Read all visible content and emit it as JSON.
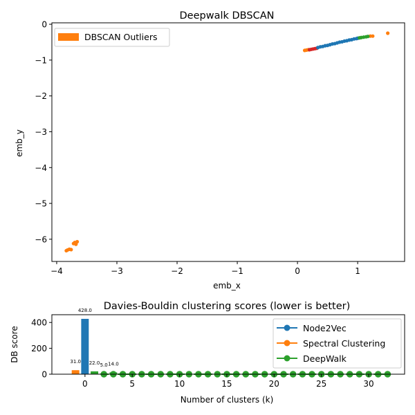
{
  "chart_data": [
    {
      "type": "scatter",
      "title": "Deepwalk DBSCAN",
      "xlabel": "emb_x",
      "ylabel": "emb_y",
      "xlim": [
        -4.08,
        1.78
      ],
      "ylim": [
        -6.62,
        0.04
      ],
      "xticks": [
        -4,
        -3,
        -2,
        -1,
        0,
        1
      ],
      "yticks": [
        0,
        -1,
        -2,
        -3,
        -4,
        -5,
        -6
      ],
      "grid": false,
      "legend": {
        "placement": "top-left",
        "entries": [
          {
            "label": "DBSCAN Outliers",
            "color": "#ff7f0e"
          }
        ]
      },
      "series": [
        {
          "name": "DBSCAN Outliers",
          "color": "#ff7f0e",
          "points": [
            [
              -3.82,
              -6.3
            ],
            [
              -3.79,
              -6.28
            ],
            [
              -3.76,
              -6.29
            ],
            [
              -3.84,
              -6.32
            ],
            [
              -3.72,
              -6.12
            ],
            [
              -3.69,
              -6.1
            ],
            [
              -3.66,
              -6.07
            ],
            [
              -3.68,
              -6.14
            ],
            [
              -3.7,
              -6.09
            ],
            [
              0.12,
              -0.73
            ],
            [
              0.15,
              -0.72
            ],
            [
              0.18,
              -0.71
            ],
            [
              1.21,
              -0.33
            ],
            [
              1.25,
              -0.33
            ],
            [
              1.5,
              -0.25
            ]
          ]
        },
        {
          "color": "#d62728",
          "points": [
            [
              0.2,
              -0.71
            ],
            [
              0.23,
              -0.7
            ],
            [
              0.26,
              -0.69
            ],
            [
              0.29,
              -0.68
            ],
            [
              0.32,
              -0.67
            ]
          ]
        },
        {
          "color": "#1f77b4",
          "points": [
            [
              0.34,
              -0.65
            ],
            [
              0.38,
              -0.63
            ],
            [
              0.42,
              -0.62
            ],
            [
              0.46,
              -0.6
            ],
            [
              0.5,
              -0.59
            ],
            [
              0.54,
              -0.57
            ],
            [
              0.58,
              -0.55
            ],
            [
              0.62,
              -0.54
            ],
            [
              0.66,
              -0.52
            ],
            [
              0.7,
              -0.5
            ],
            [
              0.74,
              -0.49
            ],
            [
              0.78,
              -0.47
            ],
            [
              0.82,
              -0.46
            ],
            [
              0.86,
              -0.44
            ],
            [
              0.9,
              -0.43
            ],
            [
              0.94,
              -0.41
            ],
            [
              0.98,
              -0.4
            ],
            [
              1.0,
              -0.39
            ]
          ]
        },
        {
          "color": "#2ca02c",
          "points": [
            [
              1.03,
              -0.38
            ],
            [
              1.06,
              -0.37
            ],
            [
              1.1,
              -0.36
            ],
            [
              1.14,
              -0.35
            ],
            [
              1.17,
              -0.34
            ]
          ]
        }
      ]
    },
    {
      "type": "bar",
      "title": "Davies-Bouldin clustering scores (lower is better)",
      "xlabel": "Number of clusters (k)",
      "ylabel": "DB score",
      "xlim": [
        -3.5,
        33.8
      ],
      "ylim": [
        0,
        460
      ],
      "xticks": [
        0,
        5,
        10,
        15,
        20,
        25,
        30
      ],
      "yticks": [
        0,
        200,
        400
      ],
      "grid": false,
      "legend": {
        "placement": "top-right"
      },
      "series": [
        {
          "name": "Node2Vec",
          "color": "#1f77b4"
        },
        {
          "name": "Spectral Clustering",
          "color": "#ff7f0e"
        },
        {
          "name": "DeepWalk",
          "color": "#2ca02c"
        }
      ],
      "bars": [
        {
          "x": -1,
          "value": 31.0,
          "label": "31.0",
          "color": "#ff7f0e"
        },
        {
          "x": 0,
          "value": 428.0,
          "label": "428.0",
          "color": "#1f77b4"
        },
        {
          "x": 1,
          "value": 22.0,
          "label": "22.0",
          "color": "#2ca02c"
        },
        {
          "x": 2,
          "value": 5.0,
          "label": "5.0",
          "color": "#2ca02c"
        },
        {
          "x": 3,
          "value": 14.0,
          "label": "14.0",
          "color": "#2ca02c"
        }
      ],
      "deepwalk_markers": {
        "k_start": 2,
        "k_end": 32,
        "value": 0,
        "color": "#2ca02c"
      }
    }
  ]
}
